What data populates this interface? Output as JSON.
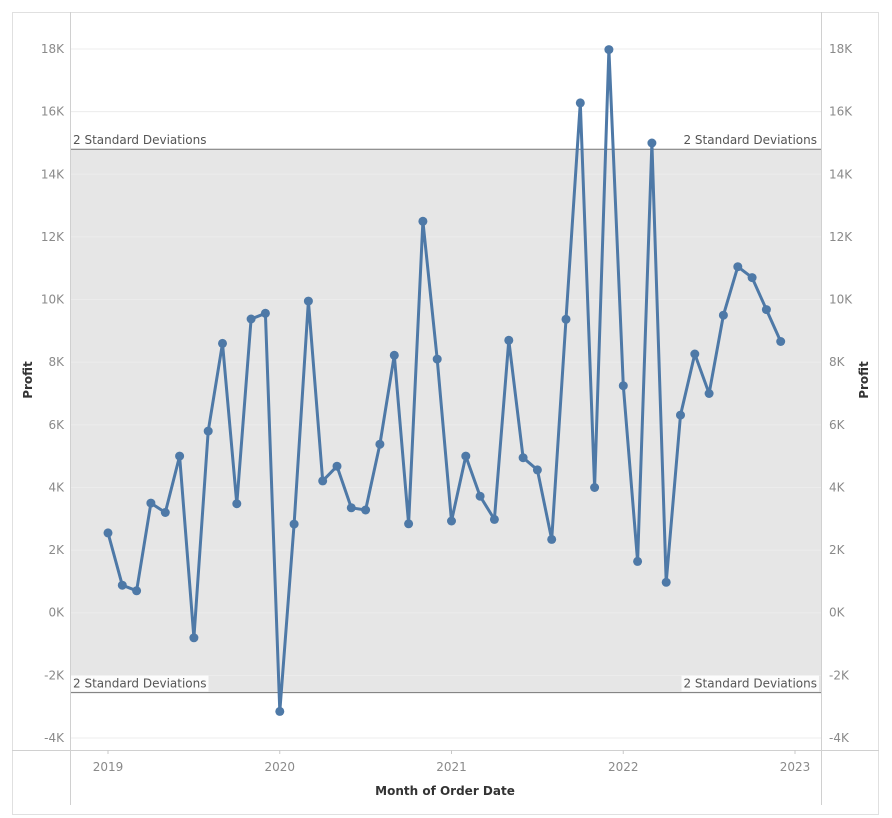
{
  "chart_data": {
    "type": "line",
    "xlabel": "Month of Order Date",
    "ylabel": "Profit",
    "y2label": "Profit",
    "ylim": [
      -4500,
      19000
    ],
    "yticks": [
      -4000,
      -2000,
      0,
      2000,
      4000,
      6000,
      8000,
      10000,
      12000,
      14000,
      16000,
      18000
    ],
    "ytick_labels": [
      "-4K",
      "-2K",
      "0K",
      "2K",
      "4K",
      "6K",
      "8K",
      "10K",
      "12K",
      "14K",
      "16K",
      "18K"
    ],
    "x_ticks": [
      "2019",
      "2020",
      "2021",
      "2022",
      "2023"
    ],
    "grid": true,
    "reference_band": {
      "upper": 14800,
      "lower": -2550,
      "upper_label": "2 Standard Deviations",
      "lower_label": "2 Standard Deviations"
    },
    "line_color": "#4e79a7",
    "band_color": "#e6e6e6",
    "series": [
      {
        "x": [
          "2019-01",
          "2019-02",
          "2019-03",
          "2019-04",
          "2019-05",
          "2019-06",
          "2019-07",
          "2019-08",
          "2019-09",
          "2019-10",
          "2019-11",
          "2019-12",
          "2020-01",
          "2020-02",
          "2020-03",
          "2020-04",
          "2020-05",
          "2020-06",
          "2020-07",
          "2020-08",
          "2020-09",
          "2020-10",
          "2020-11",
          "2020-12",
          "2021-01",
          "2021-02",
          "2021-03",
          "2021-04",
          "2021-05",
          "2021-06",
          "2021-07",
          "2021-08",
          "2021-09",
          "2021-10",
          "2021-11",
          "2021-12",
          "2022-01",
          "2022-02",
          "2022-03",
          "2022-04",
          "2022-05",
          "2022-06",
          "2022-07",
          "2022-08",
          "2022-09",
          "2022-10",
          "2022-11",
          "2022-12"
        ],
        "values": [
          2550,
          880,
          700,
          3500,
          3200,
          5000,
          -800,
          5800,
          8600,
          3480,
          9380,
          9560,
          -3150,
          2830,
          9950,
          4210,
          4680,
          3350,
          3280,
          5380,
          8220,
          2840,
          12500,
          8100,
          2930,
          5000,
          3720,
          2980,
          8700,
          4950,
          4560,
          2340,
          9370,
          16280,
          4000,
          17980,
          7250,
          1640,
          15000,
          970,
          6310,
          8260,
          7000,
          9500,
          11050,
          10700,
          9680,
          8660
        ]
      }
    ]
  }
}
